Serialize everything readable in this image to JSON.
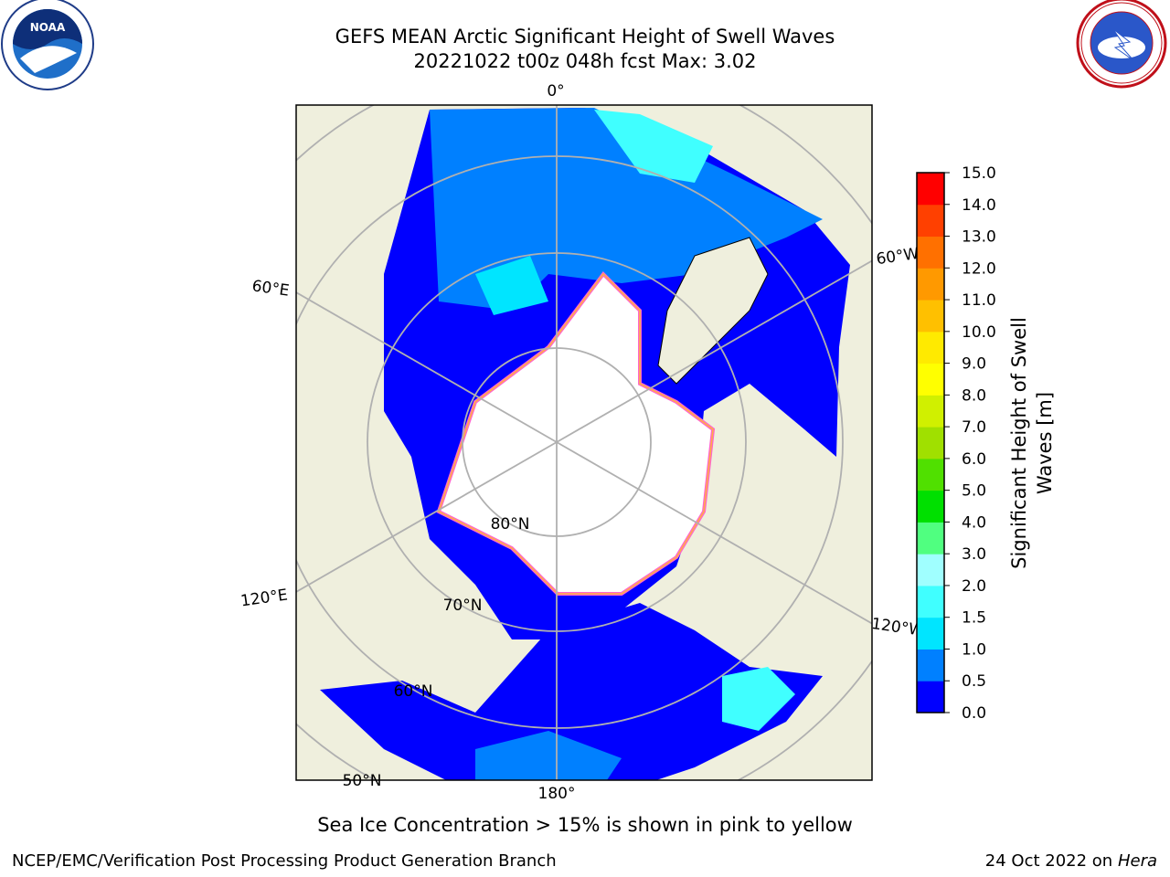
{
  "header": {
    "title_line1": "GEFS MEAN Arctic Significant Height of Swell Waves",
    "title_line2": "20221022 t00z 048h fcst   Max: 3.02"
  },
  "map": {
    "meridian_labels": [
      "0°",
      "60°E",
      "120°E",
      "180°",
      "120°W",
      "60°W"
    ],
    "parallel_labels": [
      "80°N",
      "70°N",
      "60°N",
      "50°N"
    ],
    "colors": {
      "land": "#efefdd",
      "sea_ice": "#ffffff",
      "low_swell": "#0000ff",
      "grid": "#b0b0b0"
    }
  },
  "colorbar": {
    "title_line1": "Significant Height of Swell",
    "title_line2": "Waves [m]",
    "ticks": [
      "0.0",
      "0.5",
      "1.0",
      "1.5",
      "2.0",
      "3.0",
      "4.0",
      "5.0",
      "6.0",
      "7.0",
      "8.0",
      "9.0",
      "10.0",
      "11.0",
      "12.0",
      "13.0",
      "14.0",
      "15.0"
    ],
    "colors": [
      "#0000ff",
      "#0080ff",
      "#00e5ff",
      "#40ffff",
      "#a0ffff",
      "#50ff80",
      "#00e000",
      "#50e000",
      "#a0e000",
      "#d0f000",
      "#ffff00",
      "#ffea00",
      "#ffc000",
      "#ff9900",
      "#ff7000",
      "#ff4000",
      "#ff0000"
    ]
  },
  "footer": {
    "sea_ice_note": "Sea Ice Concentration > 15% is shown in pink to yellow",
    "credit": "NCEP/EMC/Verification Post Processing Product Generation Branch",
    "date": "24 Oct 2022 on",
    "host": "Hera"
  },
  "logos": {
    "left": "NOAA",
    "right": "NATIONAL WEATHER SERVICE"
  }
}
